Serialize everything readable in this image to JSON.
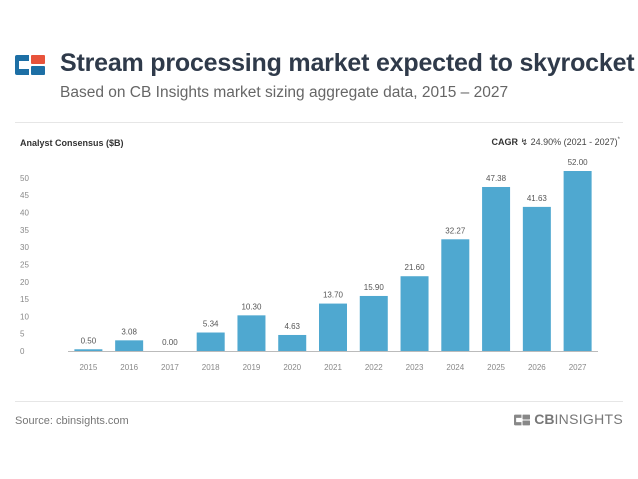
{
  "header": {
    "title": "Stream processing market expected to skyrocket",
    "subtitle": "Based on CB Insights market sizing aggregate data, 2015 – 2027"
  },
  "cagr": {
    "label": "CAGR",
    "value": "24.90%",
    "range": "(2021 - 2027)",
    "note_mark": "*"
  },
  "footer": {
    "source": "Source: cbinsights.com",
    "brand_cb": "CB",
    "brand_insights": "INSIGHTS"
  },
  "colors": {
    "bar": "#4fa8d0",
    "logo_blue": "#1d6fa5",
    "logo_red": "#e8533b",
    "logo_dark": "#2f3a4a"
  },
  "chart_data": {
    "type": "bar",
    "title": "Stream processing market expected to skyrocket",
    "xlabel": "",
    "ylabel": "Analyst Consensus ($B)",
    "categories": [
      "2015",
      "2016",
      "2017",
      "2018",
      "2019",
      "2020",
      "2021",
      "2022",
      "2023",
      "2024",
      "2025",
      "2026",
      "2027"
    ],
    "values": [
      0.5,
      3.08,
      0.0,
      5.34,
      10.3,
      4.63,
      13.7,
      15.9,
      21.6,
      32.27,
      47.38,
      41.63,
      52.0
    ],
    "value_labels": [
      "0.50",
      "3.08",
      "0.00",
      "5.34",
      "10.30",
      "4.63",
      "13.70",
      "15.90",
      "21.60",
      "32.27",
      "47.38",
      "41.63",
      "52.00"
    ],
    "yticks": [
      0,
      5,
      10,
      15,
      20,
      25,
      30,
      35,
      40,
      45,
      50
    ],
    "ylim": [
      0,
      52
    ],
    "grid": false
  }
}
